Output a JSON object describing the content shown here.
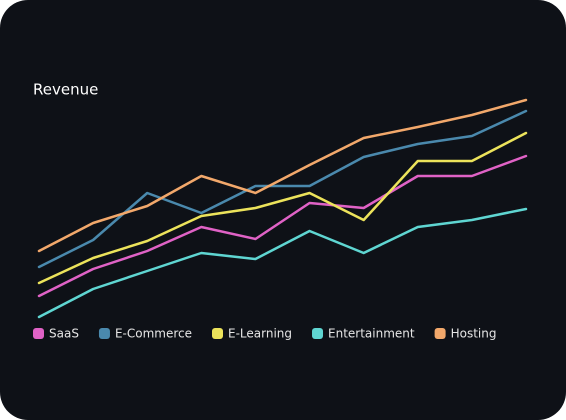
{
  "chart_data": {
    "type": "line",
    "title": "Revenue",
    "ylim": [
      0,
      240
    ],
    "series": [
      {
        "name": "SaaS",
        "color": "#e062c6",
        "values": [
          24,
          51,
          69,
          93,
          81,
          117,
          112,
          144,
          144,
          164
        ]
      },
      {
        "name": "E-Commerce",
        "color": "#4a89ad",
        "values": [
          53,
          80,
          127,
          107,
          134,
          134,
          163,
          176,
          184,
          209
        ]
      },
      {
        "name": "E-Learning",
        "color": "#ece35b",
        "values": [
          37,
          62,
          79,
          104,
          112,
          127,
          100,
          159,
          159,
          187
        ]
      },
      {
        "name": "Entertainment",
        "color": "#5fd6d2",
        "values": [
          3,
          31,
          49,
          67,
          61,
          89,
          67,
          93,
          100,
          111
        ]
      },
      {
        "name": "Hosting",
        "color": "#f2a86b",
        "values": [
          69,
          97,
          114,
          144,
          127,
          155,
          182,
          193,
          205,
          220
        ]
      }
    ]
  }
}
